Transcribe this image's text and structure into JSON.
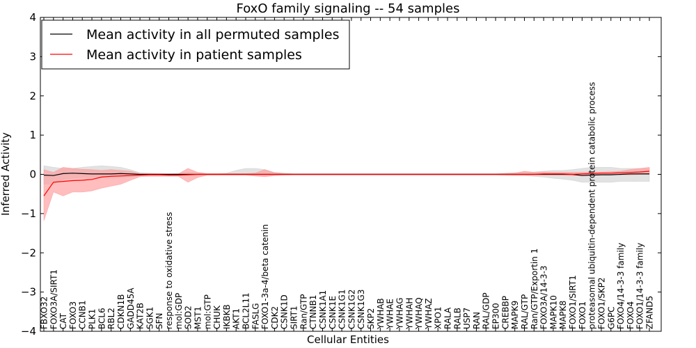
{
  "chart_data": {
    "type": "line",
    "title": "FoxO family signaling -- 54 samples",
    "xlabel": "Cellular Entities",
    "ylabel": "Inferred Activity",
    "ylim": [
      -4,
      4
    ],
    "yticks": [
      "−4",
      "−3",
      "−2",
      "−1",
      "0",
      "1",
      "2",
      "3",
      "4"
    ],
    "legend_position": "top-left",
    "categories": [
      "FBXO32",
      "FOXO3A/SIRT1",
      "CAT",
      "FOXO3",
      "CCNB1",
      "PLK1",
      "BCL6",
      "RBL2",
      "CDKN1B",
      "GADD45A",
      "KAT2B",
      "SGK1",
      "SFN",
      "response to oxidative stress",
      "mol:GDP",
      "SOD2",
      "MST1",
      "mol:GTP",
      "CHUK",
      "IKBKB",
      "AKT1",
      "BCL2L11",
      "FASLG",
      "FOXO1-3a-4/beta catenin",
      "CDK2",
      "CSNK1D",
      "SIRT1",
      "Ran/GTP",
      "CTNNB1",
      "CSNK1A1",
      "CSNK1E",
      "CSNK1G1",
      "CSNK1G2",
      "CSNK1G3",
      "SKP2",
      "YWHAB",
      "YWHAE",
      "YWHAG",
      "YWHAH",
      "YWHAQ",
      "YWHAZ",
      "XPO1",
      "RALA",
      "RALB",
      "USP7",
      "RAN",
      "RAL/GDP",
      "EP300",
      "CREBBP",
      "MAPK9",
      "RAL/GTP",
      "Ran/GTP/Exportin 1",
      "FOXO3A/14-3-3",
      "MAPK10",
      "MAPK8",
      "FOXO1/SIRT1",
      "FOXO1",
      "proteasomal ubiquitin-dependent protein catabolic process",
      "FOXO1/SKP2",
      "G6PC",
      "FOXO4/14-3-3 family",
      "FOXO4",
      "FOXO1/14-3-3 family",
      "ZFAND5"
    ],
    "series": [
      {
        "name": "Mean activity in all permuted samples",
        "color": "#000000",
        "band_color": "#bfbfbf",
        "values": [
          -0.02,
          -0.03,
          0.02,
          0.03,
          0.02,
          0.01,
          0.01,
          0.01,
          0.02,
          0.01,
          0,
          0,
          0,
          0,
          0,
          0,
          0,
          0,
          0,
          0,
          0,
          0,
          0,
          0,
          0,
          0,
          0,
          0,
          0,
          0,
          0,
          0,
          0,
          0,
          0,
          0,
          0,
          0,
          0,
          0,
          0,
          0,
          0,
          0,
          0,
          0,
          0,
          0,
          0,
          0,
          0,
          0,
          0,
          0,
          0,
          0,
          -0.03,
          -0.02,
          -0.01,
          -0.01,
          0,
          0.01,
          0.01,
          0.01
        ],
        "lower": [
          -0.25,
          -0.25,
          -0.12,
          -0.1,
          -0.08,
          -0.08,
          -0.08,
          -0.07,
          -0.07,
          -0.06,
          -0.03,
          -0.02,
          -0.02,
          -0.02,
          -0.02,
          -0.03,
          -0.02,
          -0.02,
          -0.02,
          -0.02,
          -0.02,
          -0.02,
          -0.02,
          -0.02,
          -0.02,
          -0.02,
          -0.02,
          -0.02,
          -0.02,
          -0.02,
          -0.02,
          -0.02,
          -0.02,
          -0.02,
          -0.02,
          -0.02,
          -0.02,
          -0.02,
          -0.02,
          -0.02,
          -0.02,
          -0.02,
          -0.02,
          -0.02,
          -0.02,
          -0.02,
          -0.02,
          -0.02,
          -0.03,
          -0.03,
          -0.03,
          -0.05,
          -0.07,
          -0.1,
          -0.12,
          -0.15,
          -0.2,
          -0.2,
          -0.2,
          -0.2,
          -0.18,
          -0.18,
          -0.18,
          -0.18
        ],
        "upper": [
          0.22,
          0.18,
          0.15,
          0.15,
          0.18,
          0.2,
          0.22,
          0.2,
          0.18,
          0.12,
          0.04,
          0.03,
          0.02,
          0.02,
          0.03,
          0.05,
          0.03,
          0.02,
          0.02,
          0.03,
          0.1,
          0.15,
          0.15,
          0.12,
          0.05,
          0.03,
          0.02,
          0.02,
          0.02,
          0.02,
          0.02,
          0.02,
          0.02,
          0.02,
          0.02,
          0.02,
          0.02,
          0.02,
          0.02,
          0.02,
          0.02,
          0.02,
          0.02,
          0.02,
          0.02,
          0.02,
          0.02,
          0.02,
          0.03,
          0.04,
          0.05,
          0.06,
          0.08,
          0.1,
          0.1,
          0.12,
          0.15,
          0.18,
          0.18,
          0.18,
          0.15,
          0.15,
          0.15,
          0.15
        ]
      },
      {
        "name": "Mean activity in patient samples",
        "color": "#ff0000",
        "band_color": "#ff9999",
        "values": [
          -0.55,
          -0.2,
          -0.18,
          -0.16,
          -0.15,
          -0.13,
          -0.07,
          -0.05,
          -0.04,
          -0.03,
          -0.02,
          -0.01,
          -0.01,
          -0.02,
          -0.02,
          -0.01,
          0,
          0,
          0,
          0,
          0,
          0,
          0,
          0,
          0,
          0,
          0,
          0,
          0,
          0,
          0,
          0,
          0,
          0,
          0,
          0,
          0,
          0,
          0,
          0,
          0,
          0,
          0,
          0,
          0,
          0,
          0,
          0,
          0,
          0,
          0,
          0,
          0.01,
          0.01,
          0.01,
          0,
          0.01,
          0.02,
          0.03,
          0.03,
          0.04,
          0.05,
          0.06,
          0.08
        ],
        "lower": [
          -1.18,
          -0.45,
          -0.55,
          -0.45,
          -0.45,
          -0.42,
          -0.35,
          -0.3,
          -0.25,
          -0.15,
          -0.06,
          -0.05,
          -0.05,
          -0.05,
          -0.05,
          -0.2,
          -0.08,
          -0.02,
          -0.02,
          -0.02,
          -0.02,
          -0.02,
          -0.04,
          -0.06,
          -0.03,
          -0.02,
          -0.01,
          -0.01,
          -0.01,
          -0.01,
          -0.01,
          -0.01,
          -0.01,
          -0.01,
          -0.01,
          -0.01,
          -0.01,
          -0.01,
          -0.01,
          -0.01,
          -0.01,
          -0.01,
          -0.01,
          -0.01,
          -0.01,
          -0.01,
          -0.01,
          -0.01,
          -0.01,
          -0.02,
          -0.02,
          -0.02,
          -0.02,
          -0.02,
          -0.02,
          -0.03,
          -0.02,
          -0.02,
          -0.01,
          -0.01,
          -0.01,
          -0.01,
          0,
          0
        ],
        "upper": [
          0.12,
          0.05,
          0.18,
          0.15,
          0.13,
          0.12,
          0.1,
          0.12,
          0.1,
          0.08,
          0.02,
          0.02,
          0.02,
          0.01,
          0.01,
          0.15,
          0.05,
          0.02,
          0.02,
          0.02,
          0.02,
          0.02,
          0.03,
          0.12,
          0.04,
          0.02,
          0.01,
          0.01,
          0.01,
          0.01,
          0.01,
          0.01,
          0.01,
          0.01,
          0.01,
          0.01,
          0.01,
          0.01,
          0.01,
          0.01,
          0.01,
          0.01,
          0.01,
          0.01,
          0.01,
          0.01,
          0.01,
          0.01,
          0.02,
          0.03,
          0.08,
          0.05,
          0.06,
          0.05,
          0.05,
          0.05,
          0.05,
          0.06,
          0.06,
          0.07,
          0.08,
          0.12,
          0.15,
          0.18
        ]
      }
    ]
  }
}
